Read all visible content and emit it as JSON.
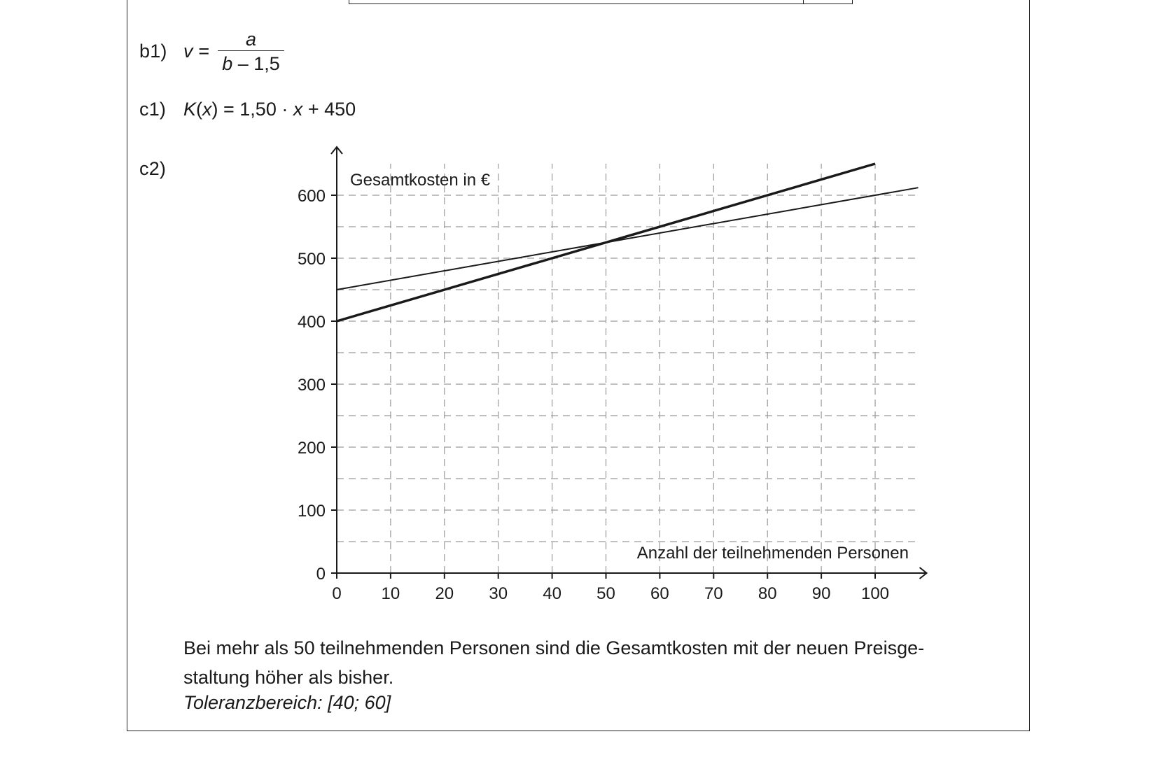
{
  "b1": {
    "label": "b1)",
    "lhs": "v =",
    "numerator": "a",
    "denominator_var": "b",
    "denominator_rest": " – 1,5"
  },
  "c1": {
    "label": "c1)",
    "func": "K",
    "open": "(",
    "var": "x",
    "close": ")",
    "rest1": " = 1,50 · ",
    "var2": "x",
    "rest2": " + 450"
  },
  "c2": {
    "label": "c2)"
  },
  "chart_data": {
    "type": "line",
    "ylabel": "Gesamtkosten in €",
    "xlabel": "Anzahl der teilnehmenden Personen",
    "xlim": [
      0,
      108
    ],
    "ylim": [
      0,
      650
    ],
    "x_ticks": [
      0,
      10,
      20,
      30,
      40,
      50,
      60,
      70,
      80,
      90,
      100
    ],
    "y_ticks": [
      0,
      100,
      200,
      300,
      400,
      500,
      600
    ],
    "grid": true,
    "series": [
      {
        "x": [
          0,
          108
        ],
        "y": [
          450,
          612
        ],
        "color": "#1a1a1a",
        "style": "thin"
      },
      {
        "x": [
          0,
          100
        ],
        "y": [
          400,
          650
        ],
        "color": "#1a1a1a",
        "style": "thick"
      }
    ]
  },
  "answer": {
    "line1": "Bei mehr als 50 teilnehmenden Personen sind die Gesamtkosten mit der neuen Preisge-",
    "line2": "staltung höher als bisher.",
    "tolerance": "Toleranzbereich: [40; 60]"
  }
}
